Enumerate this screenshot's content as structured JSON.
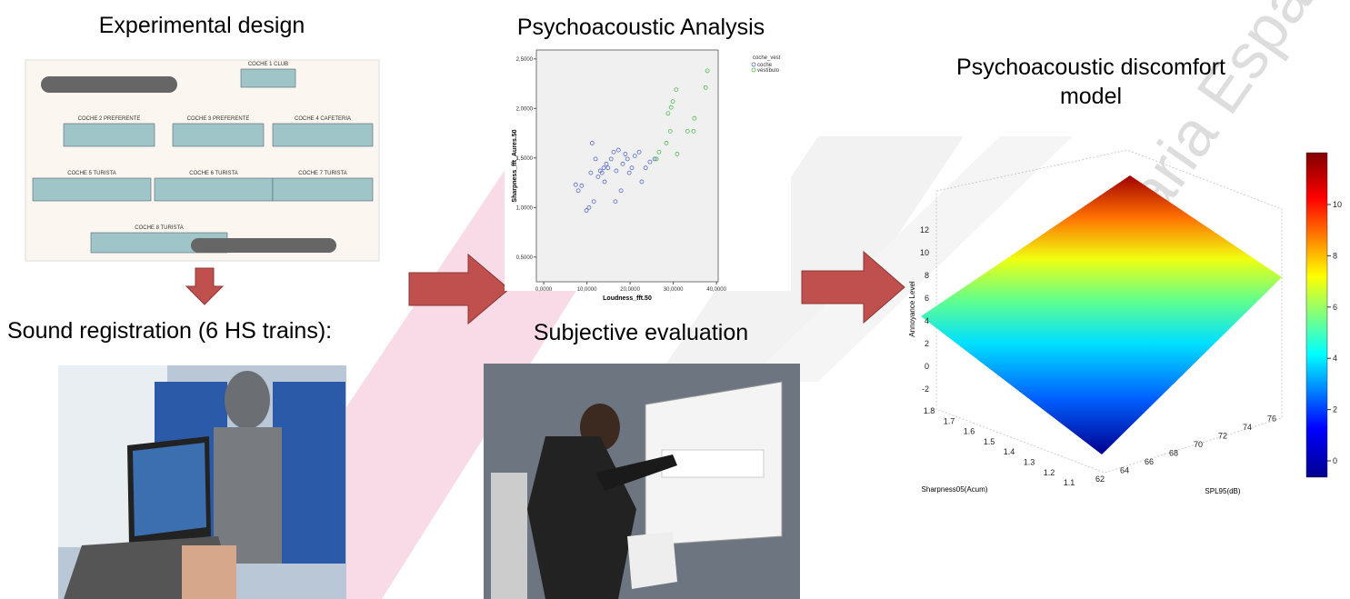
{
  "slide": {
    "experimental_design": "Experimental design",
    "sound_registration": "Sound registration (6 HS trains):",
    "psychoacoustic_analysis": "Psychoacoustic Analysis",
    "subjective_evaluation": "Subjective evaluation",
    "model_title": [
      "Psychoacoustic discomfort",
      "model"
    ],
    "watermark": "Ferroviaria Española"
  },
  "train_plan": {
    "cars": [
      "COCHE 1 CLUB",
      "COCHE 2 PREFERENTE",
      "COCHE 3 PREFERENTE",
      "COCHE 4 CAFETERIA",
      "COCHE 5 TURISTA",
      "COCHE 6 TURISTA",
      "COCHE 7 TURISTA",
      "COCHE 8 TURISTA"
    ]
  },
  "chart_data": {
    "type": "scatter",
    "x_label": "Loudness_fft.50",
    "y_label": "Sharpness_fft_Aures.50",
    "legend_title": "coche_vest",
    "xlim": [
      -1.7,
      40.4
    ],
    "ylim": [
      0.25,
      2.59
    ],
    "xticks": [
      {
        "value": 0,
        "label": "0,0000"
      },
      {
        "value": 10,
        "label": "10,0000"
      },
      {
        "value": 20,
        "label": "20,0000"
      },
      {
        "value": 30,
        "label": "30,0000"
      },
      {
        "value": 40,
        "label": "40,0000"
      }
    ],
    "yticks": [
      {
        "value": 0.5,
        "label": "0,5000"
      },
      {
        "value": 1,
        "label": "1,0000"
      },
      {
        "value": 1.5,
        "label": "1,5000"
      },
      {
        "value": 2,
        "label": "2,0000"
      },
      {
        "value": 2.5,
        "label": "2,5000"
      }
    ],
    "series": [
      {
        "name": "coche",
        "color": "#5a6bd0",
        "x": [
          7.4,
          8.0,
          8.8,
          9.9,
          10.5,
          10.9,
          11.2,
          11.6,
          12.0,
          12.6,
          13.1,
          13.5,
          13.9,
          14.1,
          14.5,
          14.9,
          15.6,
          16.2,
          16.6,
          17.3,
          17.9,
          18.3,
          18.9,
          19.4,
          19.8,
          20.4,
          21.1,
          22.1,
          22.7,
          23.6,
          24.6,
          25.7,
          16.8
        ],
        "values": [
          1.23,
          1.17,
          1.22,
          0.97,
          1.0,
          1.35,
          1.65,
          1.06,
          1.49,
          1.31,
          1.37,
          1.35,
          1.4,
          1.26,
          1.44,
          1.4,
          1.49,
          1.56,
          1.06,
          1.58,
          1.17,
          1.44,
          1.54,
          1.49,
          1.35,
          1.4,
          1.52,
          1.56,
          1.26,
          1.4,
          1.46,
          1.49,
          1.37
        ]
      },
      {
        "name": "vestíbulo",
        "color": "#4fc04f",
        "x": [
          26.1,
          26.7,
          28.4,
          29.3,
          30.9,
          28.8,
          29.5,
          29.9,
          30.7,
          33.3,
          34.7,
          34.9,
          37.5,
          37.9
        ],
        "values": [
          1.49,
          1.56,
          1.65,
          1.77,
          1.54,
          1.95,
          2.01,
          2.07,
          2.19,
          1.77,
          1.77,
          1.9,
          2.21,
          2.38
        ]
      }
    ]
  },
  "surface_plot": {
    "z_label": "Annoyance Level",
    "x_label": "Sharpness05(Acum)",
    "y_label": "SPL95(dB)",
    "z_ticks": [
      "12",
      "10",
      "8",
      "6",
      "4",
      "2",
      "0",
      "-2"
    ],
    "x_ticks": [
      "1.8",
      "1.7",
      "1.6",
      "1.5",
      "1.4",
      "1.3",
      "1.2",
      "1.1"
    ],
    "y_ticks": [
      "62",
      "64",
      "66",
      "68",
      "70",
      "72",
      "74",
      "76"
    ],
    "colorbar_ticks": [
      "0",
      "2",
      "4",
      "6",
      "8",
      "10"
    ]
  }
}
